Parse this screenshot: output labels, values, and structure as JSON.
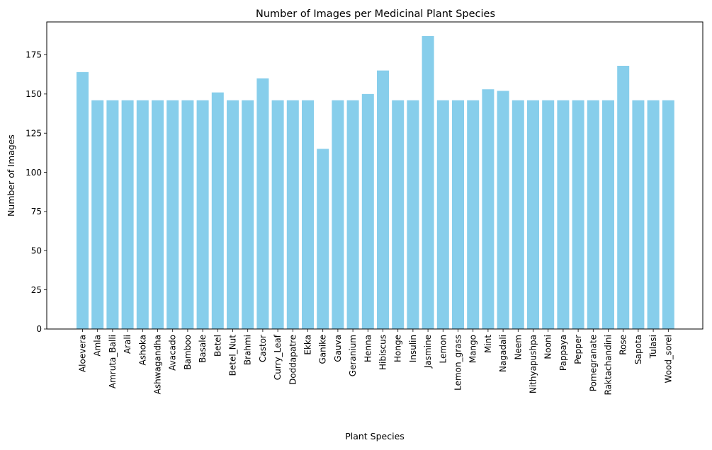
{
  "chart_data": {
    "type": "bar",
    "title": "Number of Images per Medicinal Plant Species",
    "xlabel": "Plant Species",
    "ylabel": "Number of Images",
    "ylim": [
      0,
      196
    ],
    "yticks": [
      0,
      25,
      50,
      75,
      100,
      125,
      150,
      175
    ],
    "grid": false,
    "legend": "none",
    "bar_color": "#87CEEB",
    "categories": [
      "Aloevera",
      "Amla",
      "Amruta_Balli",
      "Arali",
      "Ashoka",
      "Ashwagandha",
      "Avacado",
      "Bamboo",
      "Basale",
      "Betel",
      "Betel_Nut",
      "Brahmi",
      "Castor",
      "Curry_Leaf",
      "Doddapatre",
      "Ekka",
      "Ganike",
      "Gauva",
      "Geranium",
      "Henna",
      "Hibiscus",
      "Honge",
      "Insulin",
      "Jasmine",
      "Lemon",
      "Lemon_grass",
      "Mango",
      "Mint",
      "Nagadali",
      "Neem",
      "Nithyapushpa",
      "Nooni",
      "Pappaya",
      "Pepper",
      "Pomegranate",
      "Raktachandini",
      "Rose",
      "Sapota",
      "Tulasi",
      "Wood_sorel"
    ],
    "values": [
      164,
      146,
      146,
      146,
      146,
      146,
      146,
      146,
      146,
      151,
      146,
      146,
      160,
      146,
      146,
      146,
      115,
      146,
      146,
      150,
      165,
      146,
      146,
      187,
      146,
      146,
      146,
      153,
      152,
      146,
      146,
      146,
      146,
      146,
      146,
      146,
      168,
      146,
      146,
      146
    ]
  }
}
